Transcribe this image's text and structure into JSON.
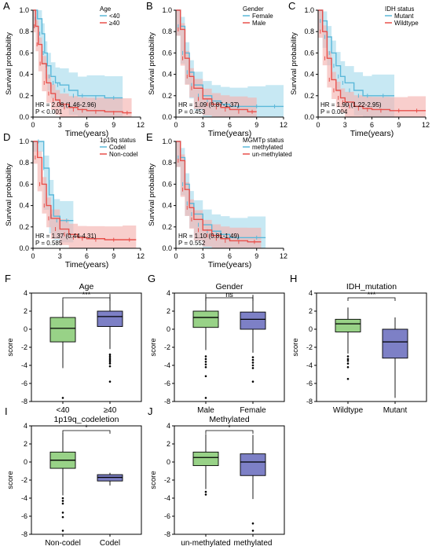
{
  "figure": {
    "colors": {
      "red": "#e8504b",
      "blue": "#5bb8d9",
      "red_band": "#f4b3b0",
      "blue_band": "#a9dcec",
      "box_green": "#98d287",
      "box_purple": "#7d80c6"
    }
  },
  "chart_data": [
    {
      "panel": "A",
      "type": "line",
      "subtype": "kaplan-meier",
      "ylabel": "Survival probability",
      "xlabel": "Time(years)",
      "xlim": [
        0,
        12
      ],
      "ylim": [
        0,
        1
      ],
      "xticks": [
        0,
        3,
        6,
        9,
        12
      ],
      "yticks": [
        0.0,
        0.2,
        0.4,
        0.6,
        0.8,
        1.0
      ],
      "legend_title": "Age",
      "hr_text": "HR = 2.08 (1.46-2.96)",
      "p_text": "P < 0.001",
      "series": [
        {
          "name": "<40",
          "color": "blue",
          "x": [
            0,
            0.5,
            1,
            1.3,
            1.6,
            2,
            2.5,
            3,
            4,
            5,
            6,
            8,
            10
          ],
          "y": [
            1.0,
            0.92,
            0.78,
            0.6,
            0.48,
            0.38,
            0.32,
            0.3,
            0.25,
            0.2,
            0.2,
            0.18,
            0.18
          ]
        },
        {
          "name": "≥40",
          "color": "red",
          "x": [
            0,
            0.3,
            0.6,
            1,
            1.5,
            2,
            2.5,
            3,
            4,
            5,
            6,
            8,
            10,
            11
          ],
          "y": [
            1.0,
            0.85,
            0.68,
            0.5,
            0.32,
            0.22,
            0.16,
            0.12,
            0.09,
            0.07,
            0.06,
            0.05,
            0.04,
            0.04
          ]
        }
      ]
    },
    {
      "panel": "B",
      "type": "line",
      "subtype": "kaplan-meier",
      "ylabel": "Survival probability",
      "xlabel": "Time(years)",
      "xlim": [
        0,
        12
      ],
      "ylim": [
        0,
        1
      ],
      "xticks": [
        0,
        3,
        6,
        9,
        12
      ],
      "yticks": [
        0.0,
        0.2,
        0.4,
        0.6,
        0.8,
        1.0
      ],
      "legend_title": "Gender",
      "hr_text": "HR = 1.09 (0.87-1.37)",
      "p_text": "P = 0.453",
      "series": [
        {
          "name": "Female",
          "color": "blue",
          "x": [
            0,
            0.5,
            1,
            1.5,
            2,
            3,
            4,
            5,
            6,
            8,
            10,
            12
          ],
          "y": [
            1.0,
            0.85,
            0.6,
            0.42,
            0.3,
            0.2,
            0.15,
            0.12,
            0.1,
            0.1,
            0.1,
            0.1
          ]
        },
        {
          "name": "Male",
          "color": "red",
          "x": [
            0,
            0.5,
            1,
            1.5,
            2,
            3,
            4,
            5,
            6,
            8,
            9
          ],
          "y": [
            1.0,
            0.82,
            0.55,
            0.38,
            0.27,
            0.17,
            0.12,
            0.09,
            0.07,
            0.05,
            0.05
          ]
        }
      ]
    },
    {
      "panel": "C",
      "type": "line",
      "subtype": "kaplan-meier",
      "ylabel": "Survival probability",
      "xlabel": "Time(years)",
      "xlim": [
        0,
        12
      ],
      "ylim": [
        0,
        1
      ],
      "xticks": [
        0,
        3,
        6,
        9,
        12
      ],
      "yticks": [
        0.0,
        0.2,
        0.4,
        0.6,
        0.8,
        1.0
      ],
      "legend_title": "IDH status",
      "hr_text": "HR = 1.90 (1.22-2.95)",
      "p_text": "P = 0.004",
      "series": [
        {
          "name": "Mutant",
          "color": "blue",
          "x": [
            0,
            0.5,
            1,
            1.5,
            2,
            2.5,
            3,
            4,
            5,
            6,
            8.5
          ],
          "y": [
            1.0,
            0.9,
            0.75,
            0.6,
            0.48,
            0.38,
            0.32,
            0.25,
            0.2,
            0.2,
            0.2
          ]
        },
        {
          "name": "Wildtype",
          "color": "red",
          "x": [
            0,
            0.5,
            1,
            1.5,
            2,
            2.5,
            3,
            4,
            5,
            6,
            8,
            10,
            12
          ],
          "y": [
            1.0,
            0.8,
            0.55,
            0.35,
            0.25,
            0.18,
            0.14,
            0.1,
            0.08,
            0.07,
            0.06,
            0.06,
            0.06
          ]
        }
      ]
    },
    {
      "panel": "D",
      "type": "line",
      "subtype": "kaplan-meier",
      "ylabel": "Survival probability",
      "xlabel": "Time(years)",
      "xlim": [
        0,
        12
      ],
      "ylim": [
        0,
        1
      ],
      "xticks": [
        0,
        3,
        6,
        9,
        12
      ],
      "yticks": [
        0.0,
        0.2,
        0.4,
        0.6,
        0.8,
        1.0
      ],
      "legend_title": "1p19q status",
      "hr_text": "HR = 1.37 (0.44-4.31)",
      "p_text": "P = 0.585",
      "series": [
        {
          "name": "Codel",
          "color": "blue",
          "x": [
            0,
            1.2,
            1.2,
            1.8,
            2.3,
            3,
            4.5
          ],
          "y": [
            1.0,
            1.0,
            0.75,
            0.5,
            0.3,
            0.26,
            0.26
          ]
        },
        {
          "name": "Non-codel",
          "color": "red",
          "x": [
            0,
            0.5,
            1,
            1.5,
            2,
            3,
            4,
            5,
            6,
            8,
            10,
            11.5
          ],
          "y": [
            1.0,
            0.85,
            0.6,
            0.4,
            0.28,
            0.18,
            0.13,
            0.1,
            0.09,
            0.08,
            0.08,
            0.08
          ]
        }
      ]
    },
    {
      "panel": "E",
      "type": "line",
      "subtype": "kaplan-meier",
      "ylabel": "Survival probability",
      "xlabel": "Time(years)",
      "xlim": [
        0,
        12
      ],
      "ylim": [
        0,
        1
      ],
      "xticks": [
        0,
        3,
        6,
        9,
        12
      ],
      "yticks": [
        0.0,
        0.2,
        0.4,
        0.6,
        0.8,
        1.0
      ],
      "legend_title": "MGMTp status",
      "hr_text": "HR = 1.10 (0.81-1.49)",
      "p_text": "P = 0.552",
      "series": [
        {
          "name": "methylated",
          "color": "blue",
          "x": [
            0,
            0.5,
            1,
            1.5,
            2,
            3,
            4,
            5,
            6,
            8,
            10
          ],
          "y": [
            1.0,
            0.85,
            0.6,
            0.42,
            0.32,
            0.22,
            0.16,
            0.13,
            0.1,
            0.1,
            0.1
          ]
        },
        {
          "name": "un-methylated",
          "color": "red",
          "x": [
            0,
            0.5,
            1,
            1.5,
            2,
            3,
            4,
            5,
            6,
            8,
            9.5
          ],
          "y": [
            1.0,
            0.82,
            0.55,
            0.38,
            0.27,
            0.17,
            0.12,
            0.09,
            0.07,
            0.06,
            0.06
          ]
        }
      ]
    },
    {
      "panel": "F",
      "type": "box",
      "title": "Age",
      "ylabel": "score",
      "ylim": [
        -8,
        4
      ],
      "yticks": [
        -8,
        -6,
        -4,
        -2,
        0,
        2,
        4
      ],
      "significance": "***",
      "categories": [
        "<40",
        "≥40"
      ],
      "boxes": [
        {
          "q1": -1.4,
          "median": 0.1,
          "q3": 1.3,
          "lower": -4.3,
          "upper": 3.2,
          "outliers": [
            -7.6
          ],
          "color": "box_green"
        },
        {
          "q1": 0.3,
          "median": 1.4,
          "q3": 2.0,
          "lower": -2.2,
          "upper": 3.9,
          "outliers": [
            -2.8,
            -3.0,
            -3.2,
            -3.4,
            -3.6,
            -3.8,
            -4.1,
            -5.8
          ],
          "color": "box_purple"
        }
      ]
    },
    {
      "panel": "G",
      "type": "box",
      "title": "Gender",
      "ylabel": "score",
      "ylim": [
        -8,
        4
      ],
      "yticks": [
        -8,
        -6,
        -4,
        -2,
        0,
        2,
        4
      ],
      "significance": "ns",
      "categories": [
        "Male",
        "Female"
      ],
      "boxes": [
        {
          "q1": 0.2,
          "median": 1.3,
          "q3": 2.0,
          "lower": -2.3,
          "upper": 3.9,
          "outliers": [
            -3.0,
            -3.3,
            -3.6,
            -3.9,
            -4.2,
            -5.2,
            -7.6
          ],
          "color": "box_green"
        },
        {
          "q1": 0.0,
          "median": 1.1,
          "q3": 1.9,
          "lower": -2.6,
          "upper": 3.8,
          "outliers": [
            -3.1,
            -3.4,
            -3.7,
            -4.0,
            -4.3,
            -5.8
          ],
          "color": "box_purple"
        }
      ]
    },
    {
      "panel": "H",
      "type": "box",
      "title": "IDH_mutation",
      "ylabel": "score",
      "ylim": [
        -8,
        4
      ],
      "yticks": [
        -8,
        -6,
        -4,
        -2,
        0,
        2,
        4
      ],
      "significance": "***",
      "categories": [
        "Wildtype",
        "Mutant"
      ],
      "boxes": [
        {
          "q1": -0.3,
          "median": 0.6,
          "q3": 1.1,
          "lower": -2.7,
          "upper": 2.4,
          "outliers": [
            -3.0,
            -3.3,
            -3.5,
            -3.8,
            -4.2,
            -5.5
          ],
          "color": "box_green"
        },
        {
          "q1": -3.2,
          "median": -1.4,
          "q3": 0.0,
          "lower": -7.6,
          "upper": 1.3,
          "outliers": [],
          "color": "box_purple"
        }
      ]
    },
    {
      "panel": "I",
      "type": "box",
      "title": "1p19q_codeletion",
      "ylabel": "score",
      "ylim": [
        -8,
        4
      ],
      "yticks": [
        -8,
        -6,
        -4,
        -2,
        0,
        2,
        4
      ],
      "significance": "*",
      "categories": [
        "Non-codel",
        "Codel"
      ],
      "boxes": [
        {
          "q1": -0.7,
          "median": 0.2,
          "q3": 1.1,
          "lower": -3.7,
          "upper": 3.2,
          "outliers": [
            -4.0,
            -4.3,
            -4.6,
            -5.6,
            -6.1,
            -7.6
          ],
          "color": "box_green"
        },
        {
          "q1": -2.1,
          "median": -1.7,
          "q3": -1.4,
          "lower": -2.6,
          "upper": -1.2,
          "outliers": [],
          "color": "box_purple"
        }
      ]
    },
    {
      "panel": "J",
      "type": "box",
      "title": "Methylated",
      "ylabel": "score",
      "ylim": [
        -8,
        4
      ],
      "yticks": [
        -8,
        -6,
        -4,
        -2,
        0,
        2,
        4
      ],
      "significance": "*",
      "categories": [
        "un-methylated",
        "methylated"
      ],
      "boxes": [
        {
          "q1": -0.4,
          "median": 0.5,
          "q3": 1.1,
          "lower": -3.0,
          "upper": 3.1,
          "outliers": [
            -3.3,
            -3.6
          ],
          "color": "box_green"
        },
        {
          "q1": -1.5,
          "median": 0.0,
          "q3": 0.9,
          "lower": -4.1,
          "upper": 3.0,
          "outliers": [
            -6.8,
            -7.6
          ],
          "color": "box_purple"
        }
      ]
    }
  ]
}
